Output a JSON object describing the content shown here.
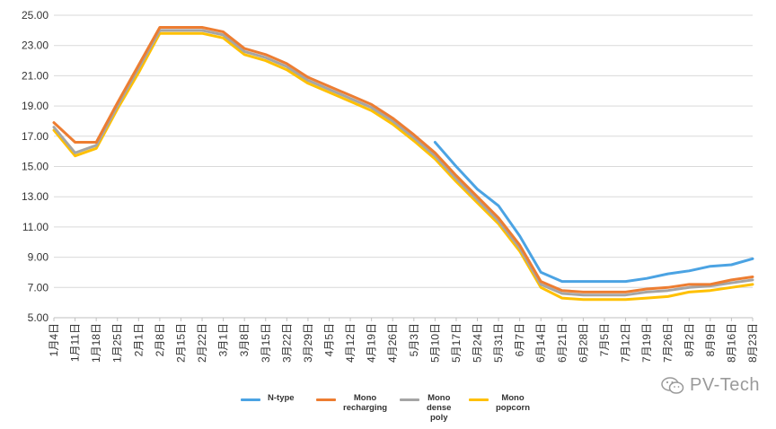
{
  "chart_data": {
    "type": "line",
    "title": "",
    "xlabel": "",
    "ylabel": "",
    "ylim": [
      5.0,
      25.0
    ],
    "yticks": [
      "5.00",
      "7.00",
      "9.00",
      "11.00",
      "13.00",
      "15.00",
      "17.00",
      "19.00",
      "21.00",
      "23.00",
      "25.00"
    ],
    "grid": true,
    "legend_position": "bottom",
    "categories": [
      "1月4日",
      "1月11日",
      "1月18日",
      "1月25日",
      "2月1日",
      "2月8日",
      "2月15日",
      "2月22日",
      "3月1日",
      "3月8日",
      "3月15日",
      "3月22日",
      "3月29日",
      "4月5日",
      "4月12日",
      "4月19日",
      "4月26日",
      "5月3日",
      "5月10日",
      "5月17日",
      "5月24日",
      "5月31日",
      "6月7日",
      "6月14日",
      "6月21日",
      "6月28日",
      "7月5日",
      "7月12日",
      "7月19日",
      "7月26日",
      "8月2日",
      "8月9日",
      "8月16日",
      "8月23日"
    ],
    "series": [
      {
        "name": "Mono\npopcorn",
        "color": "#ffc000",
        "values": [
          17.4,
          15.7,
          16.2,
          18.8,
          21.2,
          23.8,
          23.8,
          23.8,
          23.5,
          22.4,
          22.0,
          21.4,
          20.5,
          19.9,
          19.3,
          18.7,
          17.8,
          16.7,
          15.5,
          14.0,
          12.6,
          11.2,
          9.4,
          7.0,
          6.3,
          6.2,
          6.2,
          6.2,
          6.3,
          6.4,
          6.7,
          6.8,
          7.0,
          7.2
        ]
      },
      {
        "name": "Mono\ndense\npoly",
        "color": "#a5a5a5",
        "values": [
          17.6,
          15.9,
          16.4,
          19.0,
          21.5,
          24.0,
          24.0,
          24.0,
          23.7,
          22.6,
          22.2,
          21.6,
          20.7,
          20.1,
          19.5,
          18.9,
          18.0,
          16.9,
          15.7,
          14.2,
          12.8,
          11.4,
          9.6,
          7.2,
          6.6,
          6.5,
          6.5,
          6.5,
          6.7,
          6.8,
          7.0,
          7.1,
          7.3,
          7.5
        ]
      },
      {
        "name": "Mono\nrecharging",
        "color": "#ed7d31",
        "values": [
          17.9,
          16.6,
          16.6,
          19.2,
          21.7,
          24.2,
          24.2,
          24.2,
          23.9,
          22.8,
          22.4,
          21.8,
          20.9,
          20.3,
          19.7,
          19.1,
          18.2,
          17.1,
          15.9,
          14.4,
          13.0,
          11.6,
          9.8,
          7.4,
          6.8,
          6.7,
          6.7,
          6.7,
          6.9,
          7.0,
          7.2,
          7.2,
          7.5,
          7.7
        ]
      },
      {
        "name": "N-type",
        "color": "#4ba3e3",
        "start_index": 18,
        "values": [
          null,
          null,
          null,
          null,
          null,
          null,
          null,
          null,
          null,
          null,
          null,
          null,
          null,
          null,
          null,
          null,
          null,
          null,
          16.6,
          15.0,
          13.5,
          12.4,
          10.4,
          8.0,
          7.4,
          7.4,
          7.4,
          7.4,
          7.6,
          7.9,
          8.1,
          8.4,
          8.5,
          8.9
        ]
      }
    ]
  },
  "legend": [
    {
      "label": "N-type",
      "color": "#4ba3e3"
    },
    {
      "label": "Mono\nrecharging",
      "color": "#ed7d31"
    },
    {
      "label": "Mono\ndense\npoly",
      "color": "#a5a5a5"
    },
    {
      "label": "Mono\npopcorn",
      "color": "#ffc000"
    }
  ],
  "watermark": {
    "text": "PV-Tech",
    "icon": "wechat-icon"
  }
}
